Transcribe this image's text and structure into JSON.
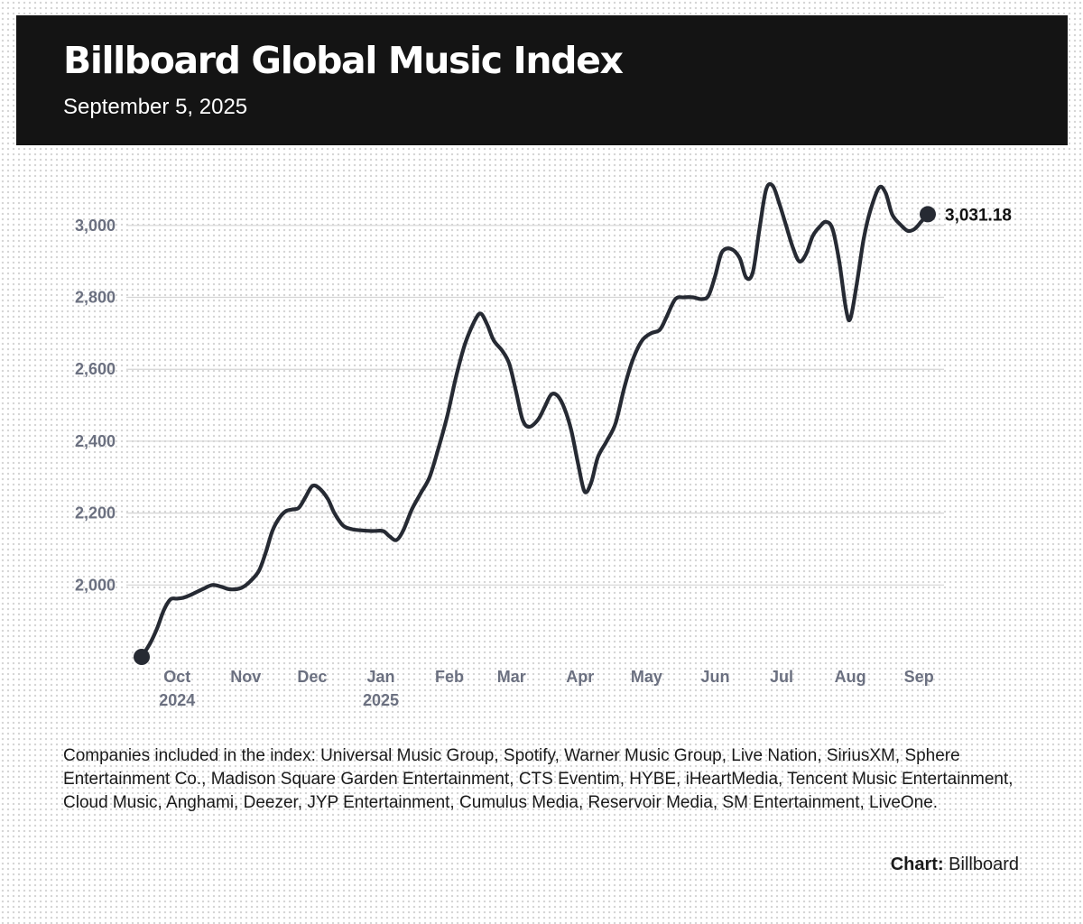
{
  "header": {
    "title": "Billboard Global Music Index",
    "subtitle": "September 5, 2025"
  },
  "chart_data": {
    "type": "line",
    "title": "Billboard Global Music Index",
    "subtitle": "September 5, 2025",
    "xlabel": "",
    "ylabel": "",
    "x_axis_type": "date",
    "xlim": [
      "2024-09-13",
      "2025-09-06"
    ],
    "ylim": [
      1800,
      3120
    ],
    "y_ticks": [
      {
        "value": 2000,
        "label": "2,000"
      },
      {
        "value": 2200,
        "label": "2,200"
      },
      {
        "value": 2400,
        "label": "2,400"
      },
      {
        "value": 2600,
        "label": "2,600"
      },
      {
        "value": 2800,
        "label": "2,800"
      },
      {
        "value": 3000,
        "label": "3,000"
      }
    ],
    "x_ticks": [
      {
        "date": "2024-10-01",
        "label": "Oct",
        "sublabel": "2024"
      },
      {
        "date": "2024-11-01",
        "label": "Nov",
        "sublabel": ""
      },
      {
        "date": "2024-12-01",
        "label": "Dec",
        "sublabel": ""
      },
      {
        "date": "2025-01-01",
        "label": "Jan",
        "sublabel": "2025"
      },
      {
        "date": "2025-02-01",
        "label": "Feb",
        "sublabel": ""
      },
      {
        "date": "2025-03-01",
        "label": "Mar",
        "sublabel": ""
      },
      {
        "date": "2025-04-01",
        "label": "Apr",
        "sublabel": ""
      },
      {
        "date": "2025-05-01",
        "label": "May",
        "sublabel": ""
      },
      {
        "date": "2025-06-01",
        "label": "Jun",
        "sublabel": ""
      },
      {
        "date": "2025-07-01",
        "label": "Jul",
        "sublabel": ""
      },
      {
        "date": "2025-08-01",
        "label": "Aug",
        "sublabel": ""
      },
      {
        "date": "2025-09-01",
        "label": "Sep",
        "sublabel": ""
      }
    ],
    "grid": true,
    "line_color": "#262a33",
    "gridline_color": "#d5d5d5",
    "series": [
      {
        "points": [
          [
            "2024-09-15",
            1800
          ],
          [
            "2024-09-19",
            1840
          ],
          [
            "2024-09-22",
            1880
          ],
          [
            "2024-09-25",
            1930
          ],
          [
            "2024-09-28",
            1960
          ],
          [
            "2024-10-01",
            1962
          ],
          [
            "2024-10-04",
            1965
          ],
          [
            "2024-10-08",
            1975
          ],
          [
            "2024-10-13",
            1990
          ],
          [
            "2024-10-17",
            2000
          ],
          [
            "2024-10-21",
            1995
          ],
          [
            "2024-10-25",
            1988
          ],
          [
            "2024-10-30",
            1992
          ],
          [
            "2024-11-03",
            2010
          ],
          [
            "2024-11-07",
            2040
          ],
          [
            "2024-11-10",
            2090
          ],
          [
            "2024-11-13",
            2150
          ],
          [
            "2024-11-16",
            2185
          ],
          [
            "2024-11-19",
            2205
          ],
          [
            "2024-11-22",
            2210
          ],
          [
            "2024-11-25",
            2215
          ],
          [
            "2024-11-28",
            2245
          ],
          [
            "2024-12-01",
            2275
          ],
          [
            "2024-12-04",
            2270
          ],
          [
            "2024-12-08",
            2240
          ],
          [
            "2024-12-11",
            2200
          ],
          [
            "2024-12-15",
            2165
          ],
          [
            "2024-12-19",
            2155
          ],
          [
            "2024-12-23",
            2152
          ],
          [
            "2024-12-28",
            2150
          ],
          [
            "2025-01-02",
            2150
          ],
          [
            "2025-01-05",
            2135
          ],
          [
            "2025-01-08",
            2125
          ],
          [
            "2025-01-11",
            2150
          ],
          [
            "2025-01-15",
            2210
          ],
          [
            "2025-01-19",
            2255
          ],
          [
            "2025-01-23",
            2300
          ],
          [
            "2025-01-27",
            2380
          ],
          [
            "2025-01-31",
            2470
          ],
          [
            "2025-02-04",
            2580
          ],
          [
            "2025-02-08",
            2670
          ],
          [
            "2025-02-12",
            2730
          ],
          [
            "2025-02-15",
            2755
          ],
          [
            "2025-02-18",
            2725
          ],
          [
            "2025-02-21",
            2680
          ],
          [
            "2025-02-25",
            2650
          ],
          [
            "2025-02-28",
            2615
          ],
          [
            "2025-03-03",
            2540
          ],
          [
            "2025-03-06",
            2460
          ],
          [
            "2025-03-09",
            2440
          ],
          [
            "2025-03-13",
            2460
          ],
          [
            "2025-03-16",
            2495
          ],
          [
            "2025-03-19",
            2530
          ],
          [
            "2025-03-22",
            2525
          ],
          [
            "2025-03-25",
            2490
          ],
          [
            "2025-03-28",
            2430
          ],
          [
            "2025-03-31",
            2340
          ],
          [
            "2025-04-03",
            2260
          ],
          [
            "2025-04-06",
            2285
          ],
          [
            "2025-04-09",
            2355
          ],
          [
            "2025-04-13",
            2400
          ],
          [
            "2025-04-17",
            2450
          ],
          [
            "2025-04-21",
            2550
          ],
          [
            "2025-04-25",
            2630
          ],
          [
            "2025-04-29",
            2680
          ],
          [
            "2025-05-03",
            2700
          ],
          [
            "2025-05-07",
            2710
          ],
          [
            "2025-05-10",
            2745
          ],
          [
            "2025-05-14",
            2795
          ],
          [
            "2025-05-18",
            2800
          ],
          [
            "2025-05-22",
            2800
          ],
          [
            "2025-05-26",
            2795
          ],
          [
            "2025-05-29",
            2805
          ],
          [
            "2025-06-01",
            2860
          ],
          [
            "2025-06-04",
            2925
          ],
          [
            "2025-06-08",
            2935
          ],
          [
            "2025-06-12",
            2910
          ],
          [
            "2025-06-15",
            2855
          ],
          [
            "2025-06-18",
            2870
          ],
          [
            "2025-06-21",
            2990
          ],
          [
            "2025-06-24",
            3100
          ],
          [
            "2025-06-27",
            3110
          ],
          [
            "2025-06-30",
            3060
          ],
          [
            "2025-07-03",
            3000
          ],
          [
            "2025-07-06",
            2940
          ],
          [
            "2025-07-09",
            2900
          ],
          [
            "2025-07-12",
            2920
          ],
          [
            "2025-07-15",
            2970
          ],
          [
            "2025-07-18",
            2995
          ],
          [
            "2025-07-21",
            3010
          ],
          [
            "2025-07-24",
            2990
          ],
          [
            "2025-07-27",
            2900
          ],
          [
            "2025-07-30",
            2770
          ],
          [
            "2025-08-01",
            2740
          ],
          [
            "2025-08-04",
            2840
          ],
          [
            "2025-08-07",
            2960
          ],
          [
            "2025-08-10",
            3040
          ],
          [
            "2025-08-14",
            3105
          ],
          [
            "2025-08-17",
            3090
          ],
          [
            "2025-08-20",
            3030
          ],
          [
            "2025-08-24",
            3000
          ],
          [
            "2025-08-27",
            2985
          ],
          [
            "2025-08-30",
            2990
          ],
          [
            "2025-09-02",
            3010
          ],
          [
            "2025-09-05",
            3031.18
          ]
        ]
      }
    ],
    "end_point_label": "3,031.18"
  },
  "footer": {
    "notes": "Companies included in the index: Universal Music Group, Spotify, Warner Music Group, Live Nation, SiriusXM, Sphere Entertainment Co., Madison Square Garden Entertainment, CTS Eventim, HYBE, iHeartMedia, Tencent Music Entertainment, Cloud Music, Anghami, Deezer, JYP Entertainment, Cumulus Media, Reservoir Media, SM Entertainment, LiveOne.",
    "credit_label": "Chart:",
    "credit_value": "Billboard"
  }
}
